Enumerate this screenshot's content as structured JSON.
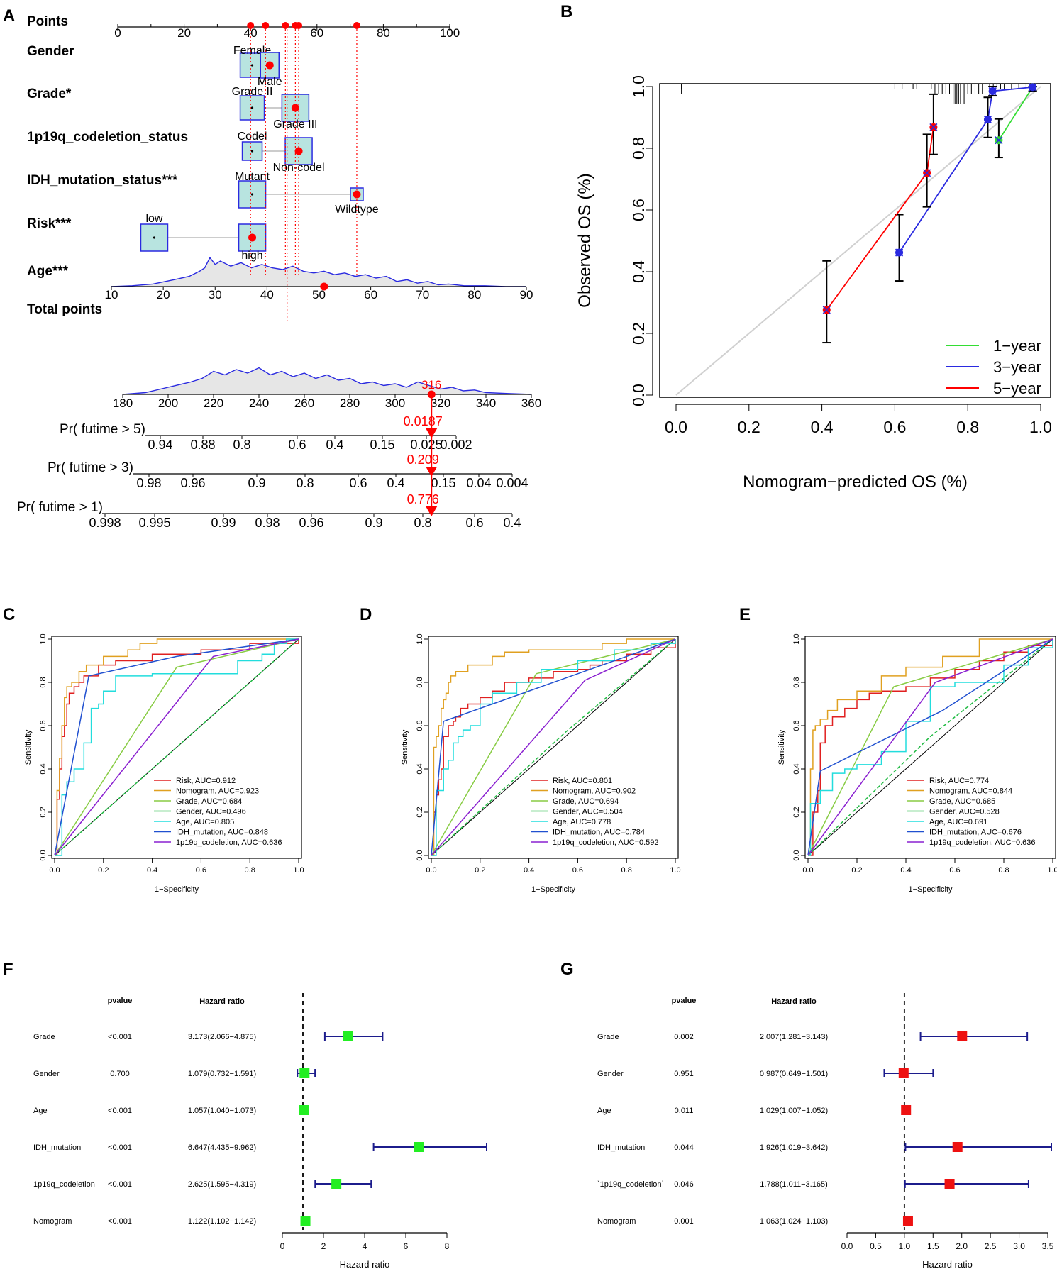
{
  "panel_letters": {
    "a": "A",
    "b": "B",
    "c": "C",
    "d": "D",
    "e": "E",
    "f": "F",
    "g": "G"
  },
  "colors": {
    "red": "#ff0000",
    "blue": "#2a2ae0",
    "box_fill": "#b8e4e0",
    "box_stroke": "#2a2ae0",
    "green_line": "#33dd33",
    "navy": "#1c1c8c",
    "sq_green": "#22ee22",
    "sq_red": "#ee1111",
    "grey_diag": "#d0d0d0"
  },
  "chart_data": [
    {
      "panel": "A",
      "type": "nomogram",
      "points": {
        "label": "Points",
        "ticks": [
          "0",
          "20",
          "40",
          "60",
          "80",
          "100"
        ],
        "marked_points": [
          40,
          44.5,
          50.5,
          53.5,
          54.5,
          72
        ]
      },
      "variables": [
        {
          "label": "Gender",
          "levels": [
            {
              "name": "Female",
              "points": 40.5
            },
            {
              "name": "Male",
              "points": 44.5
            }
          ],
          "selected": "Male"
        },
        {
          "label": "Grade*",
          "levels": [
            {
              "name": "Grade II",
              "points": 40.5
            },
            {
              "name": "Grade III",
              "points": 53.5
            }
          ],
          "selected": "Grade III"
        },
        {
          "label": "1p19q_codeletion_status",
          "levels": [
            {
              "name": "Codel",
              "points": 40.5
            },
            {
              "name": "Non-codel",
              "points": 54.5
            }
          ],
          "selected": "Non-codel"
        },
        {
          "label": "IDH_mutation_status***",
          "levels": [
            {
              "name": "Mutant",
              "points": 40.5
            },
            {
              "name": "Wildtype",
              "points": 72
            }
          ],
          "selected": "Wildtype"
        },
        {
          "label": "Risk***",
          "levels": [
            {
              "name": "low",
              "points": 11
            },
            {
              "name": "high",
              "points": 40.5
            }
          ],
          "selected": "high"
        }
      ],
      "age": {
        "label": "Age***",
        "ticks": [
          "10",
          "20",
          "30",
          "40",
          "50",
          "60",
          "70",
          "80",
          "90"
        ],
        "selected_age": 51
      },
      "total_points": {
        "label": "Total points",
        "ticks": [
          "180",
          "200",
          "220",
          "240",
          "260",
          "280",
          "300",
          "320",
          "340",
          "360"
        ],
        "value": "316"
      },
      "probabilities": [
        {
          "label": "Pr( futime > 5)",
          "ticks": [
            "0.94",
            "0.88",
            "0.8",
            "0.6",
            "0.4",
            "0.15",
            "0.025",
            "0.002"
          ],
          "value": "0.0187"
        },
        {
          "label": "Pr( futime > 3)",
          "ticks": [
            "0.98",
            "0.96",
            "0.9",
            "0.8",
            "0.6",
            "0.4",
            "0.15",
            "0.04",
            "0.004"
          ],
          "value": "0.209"
        },
        {
          "label": "Pr( futime > 1)",
          "ticks": [
            "0.998",
            "0.995",
            "0.99",
            "0.98",
            "0.96",
            "0.9",
            "0.8",
            "0.6",
            "0.4"
          ],
          "value": "0.776"
        }
      ]
    },
    {
      "panel": "B",
      "type": "line",
      "xlabel": "Nomogram−predicted OS (%)",
      "ylabel": "Observed OS (%)",
      "xlim": [
        0,
        1
      ],
      "ylim": [
        0,
        1
      ],
      "xticks": [
        "0.0",
        "0.2",
        "0.4",
        "0.6",
        "0.8",
        "1.0"
      ],
      "yticks": [
        "0.0",
        "0.2",
        "0.4",
        "0.6",
        "0.8",
        "1.0"
      ],
      "series": [
        {
          "name": "1−year",
          "color": "#33dd33",
          "x": [
            0.885,
            0.978
          ],
          "y": [
            0.826,
            0.998
          ],
          "err_lo": [
            0.77,
            0.985
          ],
          "err_hi": [
            0.895,
            1.0
          ]
        },
        {
          "name": "3−year",
          "color": "#2a2ae0",
          "x": [
            0.612,
            0.855,
            0.868,
            0.978
          ],
          "y": [
            0.462,
            0.893,
            0.985,
            0.998
          ],
          "err_lo": [
            0.37,
            0.835,
            0.97,
            0.985
          ],
          "err_hi": [
            0.585,
            0.965,
            1.0,
            1.0
          ]
        },
        {
          "name": "5−year",
          "color": "#ff0000",
          "x": [
            0.413,
            0.688,
            0.706
          ],
          "y": [
            0.276,
            0.72,
            0.868
          ],
          "err_lo": [
            0.17,
            0.61,
            0.78
          ],
          "err_hi": [
            0.435,
            0.845,
            0.975
          ]
        }
      ]
    },
    {
      "panel": "C",
      "type": "roc",
      "xlabel": "1−Specificity",
      "ylabel": "Sensitivity",
      "ticks": [
        "0.0",
        "0.2",
        "0.4",
        "0.6",
        "0.8",
        "1.0"
      ],
      "series": [
        {
          "name": "Risk, AUC=0.912",
          "color": "#e02020",
          "x": [
            0,
            0.01,
            0.02,
            0.03,
            0.04,
            0.05,
            0.06,
            0.07,
            0.08,
            0.09,
            0.1,
            0.12,
            0.15,
            0.18,
            0.2,
            0.25,
            0.3,
            0.35,
            0.4,
            0.45,
            0.6,
            0.8,
            1.0
          ],
          "y": [
            0,
            0.26,
            0.4,
            0.55,
            0.6,
            0.7,
            0.75,
            0.75,
            0.78,
            0.78,
            0.8,
            0.83,
            0.83,
            0.88,
            0.88,
            0.9,
            0.9,
            0.9,
            0.93,
            0.93,
            0.95,
            0.98,
            1.0
          ]
        },
        {
          "name": "Nomogram, AUC=0.923",
          "color": "#e0a020",
          "x": [
            0,
            0.01,
            0.02,
            0.03,
            0.04,
            0.05,
            0.07,
            0.1,
            0.13,
            0.2,
            0.3,
            0.35,
            0.4,
            0.42,
            0.45,
            1.0
          ],
          "y": [
            0,
            0.3,
            0.45,
            0.6,
            0.73,
            0.78,
            0.8,
            0.85,
            0.88,
            0.92,
            0.95,
            0.98,
            0.98,
            1.0,
            1.0,
            1.0
          ]
        },
        {
          "name": "Grade, AUC=0.684",
          "color": "#88cc44",
          "x": [
            0,
            0.5,
            1.0
          ],
          "y": [
            0,
            0.87,
            1.0
          ]
        },
        {
          "name": "Gender, AUC=0.496",
          "color": "#22bb44",
          "x": [
            0,
            1.0
          ],
          "y": [
            0,
            1.0
          ]
        },
        {
          "name": "Age, AUC=0.805",
          "color": "#22dddd",
          "x": [
            0,
            0.03,
            0.05,
            0.07,
            0.08,
            0.1,
            0.12,
            0.15,
            0.18,
            0.2,
            0.25,
            0.3,
            0.4,
            0.55,
            0.7,
            0.75,
            0.8,
            0.85,
            0.9,
            0.95,
            1.0
          ],
          "y": [
            0,
            0.28,
            0.34,
            0.34,
            0.4,
            0.4,
            0.52,
            0.68,
            0.7,
            0.76,
            0.83,
            0.83,
            0.84,
            0.84,
            0.84,
            0.9,
            0.9,
            0.93,
            0.98,
            1.0,
            1.0
          ]
        },
        {
          "name": "IDH_mutation, AUC=0.848",
          "color": "#2050d0",
          "x": [
            0,
            0.14,
            0.5,
            1.0
          ],
          "y": [
            0,
            0.83,
            0.92,
            1.0
          ]
        },
        {
          "name": "1p19q_codeletion, AUC=0.636",
          "color": "#8a20d0",
          "x": [
            0,
            0.65,
            1.0
          ],
          "y": [
            0,
            0.92,
            1.0
          ]
        }
      ]
    },
    {
      "panel": "D",
      "type": "roc",
      "xlabel": "1−Specificity",
      "ylabel": "Sensitivity",
      "ticks": [
        "0.0",
        "0.2",
        "0.4",
        "0.6",
        "0.8",
        "1.0"
      ],
      "series": [
        {
          "name": "Risk, AUC=0.801",
          "color": "#e02020",
          "x": [
            0,
            0.01,
            0.02,
            0.03,
            0.04,
            0.05,
            0.07,
            0.09,
            0.1,
            0.12,
            0.15,
            0.2,
            0.25,
            0.3,
            0.4,
            0.5,
            0.6,
            0.65,
            0.7,
            0.8,
            0.9,
            1.0
          ],
          "y": [
            0,
            0.2,
            0.28,
            0.35,
            0.4,
            0.55,
            0.6,
            0.62,
            0.64,
            0.68,
            0.7,
            0.73,
            0.76,
            0.8,
            0.82,
            0.85,
            0.86,
            0.88,
            0.9,
            0.93,
            0.96,
            1.0
          ]
        },
        {
          "name": "Nomogram, AUC=0.902",
          "color": "#e0a020",
          "x": [
            0,
            0.01,
            0.02,
            0.03,
            0.04,
            0.05,
            0.06,
            0.07,
            0.08,
            0.1,
            0.15,
            0.2,
            0.25,
            0.3,
            0.4,
            0.6,
            0.7,
            0.8,
            1.0
          ],
          "y": [
            0,
            0.5,
            0.55,
            0.6,
            0.68,
            0.72,
            0.75,
            0.8,
            0.83,
            0.85,
            0.88,
            0.88,
            0.92,
            0.94,
            0.95,
            0.95,
            0.98,
            1.0,
            1.0
          ]
        },
        {
          "name": "Grade, AUC=0.694",
          "color": "#88cc44",
          "x": [
            0,
            0.43,
            1.0
          ],
          "y": [
            0,
            0.84,
            1.0
          ]
        },
        {
          "name": "Gender, AUC=0.504",
          "color": "#22bb44",
          "x": [
            0,
            0.55,
            1.0
          ],
          "y": [
            0,
            0.57,
            1.0
          ]
        },
        {
          "name": "Age, AUC=0.778",
          "color": "#22dddd",
          "x": [
            0,
            0.02,
            0.05,
            0.07,
            0.09,
            0.11,
            0.13,
            0.16,
            0.2,
            0.25,
            0.35,
            0.45,
            0.6,
            0.75,
            0.9,
            1.0
          ],
          "y": [
            0,
            0.3,
            0.4,
            0.44,
            0.52,
            0.55,
            0.58,
            0.6,
            0.7,
            0.75,
            0.8,
            0.86,
            0.9,
            0.95,
            0.98,
            1.0
          ]
        },
        {
          "name": "IDH_mutation, AUC=0.784",
          "color": "#2050d0",
          "x": [
            0,
            0.05,
            0.8,
            1.0
          ],
          "y": [
            0,
            0.62,
            0.92,
            1.0
          ]
        },
        {
          "name": "1p19q_codeletion, AUC=0.592",
          "color": "#8a20d0",
          "x": [
            0,
            0.63,
            1.0
          ],
          "y": [
            0,
            0.81,
            1.0
          ]
        }
      ]
    },
    {
      "panel": "E",
      "type": "roc",
      "xlabel": "1−Specificity",
      "ylabel": "Sensitivity",
      "ticks": [
        "0.0",
        "0.2",
        "0.4",
        "0.6",
        "0.8",
        "1.0"
      ],
      "series": [
        {
          "name": "Risk, AUC=0.774",
          "color": "#e02020",
          "x": [
            0,
            0.02,
            0.04,
            0.05,
            0.07,
            0.1,
            0.15,
            0.2,
            0.25,
            0.3,
            0.4,
            0.5,
            0.6,
            0.7,
            0.8,
            0.9,
            1.0
          ],
          "y": [
            0,
            0.2,
            0.3,
            0.52,
            0.6,
            0.64,
            0.68,
            0.72,
            0.75,
            0.76,
            0.78,
            0.82,
            0.86,
            0.9,
            0.94,
            0.97,
            1.0
          ]
        },
        {
          "name": "Nomogram, AUC=0.844",
          "color": "#e0a020",
          "x": [
            0,
            0.01,
            0.02,
            0.03,
            0.05,
            0.08,
            0.12,
            0.2,
            0.3,
            0.4,
            0.55,
            0.7,
            0.8,
            1.0
          ],
          "y": [
            0,
            0.4,
            0.58,
            0.6,
            0.63,
            0.67,
            0.72,
            0.76,
            0.83,
            0.87,
            0.92,
            1.0,
            1.0,
            1.0
          ]
        },
        {
          "name": "Grade, AUC=0.685",
          "color": "#88cc44",
          "x": [
            0,
            0.35,
            1.0
          ],
          "y": [
            0,
            0.78,
            1.0
          ]
        },
        {
          "name": "Gender, AUC=0.528",
          "color": "#22bb44",
          "x": [
            0,
            0.5,
            1.0
          ],
          "y": [
            0,
            0.55,
            1.0
          ]
        },
        {
          "name": "Age, AUC=0.691",
          "color": "#22dddd",
          "x": [
            0,
            0.01,
            0.05,
            0.1,
            0.15,
            0.2,
            0.3,
            0.4,
            0.5,
            0.6,
            0.7,
            0.8,
            0.9,
            1.0
          ],
          "y": [
            0,
            0.24,
            0.3,
            0.38,
            0.4,
            0.42,
            0.48,
            0.62,
            0.78,
            0.8,
            0.8,
            0.88,
            0.96,
            1.0
          ]
        },
        {
          "name": "IDH_mutation, AUC=0.676",
          "color": "#2050d0",
          "x": [
            0,
            0.05,
            0.55,
            1.0
          ],
          "y": [
            0,
            0.39,
            0.67,
            1.0
          ]
        },
        {
          "name": "1p19q_codeletion, AUC=0.636",
          "color": "#8a20d0",
          "x": [
            0,
            0.52,
            1.0
          ],
          "y": [
            0,
            0.8,
            1.0
          ]
        }
      ]
    },
    {
      "panel": "F",
      "type": "forest",
      "col_pvalue": "pvalue",
      "col_hr": "Hazard ratio",
      "xlabel": "Hazard ratio",
      "xticks": [
        "0",
        "2",
        "4",
        "6",
        "8"
      ],
      "xlim": [
        0,
        8
      ],
      "ref": 1,
      "marker_color": "#22ee22",
      "rows": [
        {
          "name": "Grade",
          "pvalue": "<0.001",
          "hr_text": "3.173(2.066−4.875)",
          "hr": 3.173,
          "lo": 2.066,
          "hi": 4.875
        },
        {
          "name": "Gender",
          "pvalue": "0.700",
          "hr_text": "1.079(0.732−1.591)",
          "hr": 1.079,
          "lo": 0.732,
          "hi": 1.591
        },
        {
          "name": "Age",
          "pvalue": "<0.001",
          "hr_text": "1.057(1.040−1.073)",
          "hr": 1.057,
          "lo": 1.04,
          "hi": 1.073
        },
        {
          "name": "IDH_mutation",
          "pvalue": "<0.001",
          "hr_text": "6.647(4.435−9.962)",
          "hr": 6.647,
          "lo": 4.435,
          "hi": 9.962
        },
        {
          "name": "1p19q_codeletion",
          "pvalue": "<0.001",
          "hr_text": "2.625(1.595−4.319)",
          "hr": 2.625,
          "lo": 1.595,
          "hi": 4.319
        },
        {
          "name": "Nomogram",
          "pvalue": "<0.001",
          "hr_text": "1.122(1.102−1.142)",
          "hr": 1.122,
          "lo": 1.102,
          "hi": 1.142
        }
      ]
    },
    {
      "panel": "G",
      "type": "forest",
      "col_pvalue": "pvalue",
      "col_hr": "Hazard ratio",
      "xlabel": "Hazard ratio",
      "xticks": [
        "0.0",
        "0.5",
        "1.0",
        "1.5",
        "2.0",
        "2.5",
        "3.0",
        "3.5"
      ],
      "xlim": [
        0,
        3.5
      ],
      "ref": 1,
      "marker_color": "#ee1111",
      "rows": [
        {
          "name": "Grade",
          "pvalue": "0.002",
          "hr_text": "2.007(1.281−3.143)",
          "hr": 2.007,
          "lo": 1.281,
          "hi": 3.143
        },
        {
          "name": "Gender",
          "pvalue": "0.951",
          "hr_text": "0.987(0.649−1.501)",
          "hr": 0.987,
          "lo": 0.649,
          "hi": 1.501
        },
        {
          "name": "Age",
          "pvalue": "0.011",
          "hr_text": "1.029(1.007−1.052)",
          "hr": 1.029,
          "lo": 1.007,
          "hi": 1.052
        },
        {
          "name": "IDH_mutation",
          "pvalue": "0.044",
          "hr_text": "1.926(1.019−3.642)",
          "hr": 1.926,
          "lo": 1.019,
          "hi": 3.642
        },
        {
          "name": "`1p19q_codeletion`",
          "pvalue": "0.046",
          "hr_text": "1.788(1.011−3.165)",
          "hr": 1.788,
          "lo": 1.011,
          "hi": 3.165
        },
        {
          "name": "Nomogram",
          "pvalue": "0.001",
          "hr_text": "1.063(1.024−1.103)",
          "hr": 1.063,
          "lo": 1.024,
          "hi": 1.103
        }
      ]
    }
  ]
}
